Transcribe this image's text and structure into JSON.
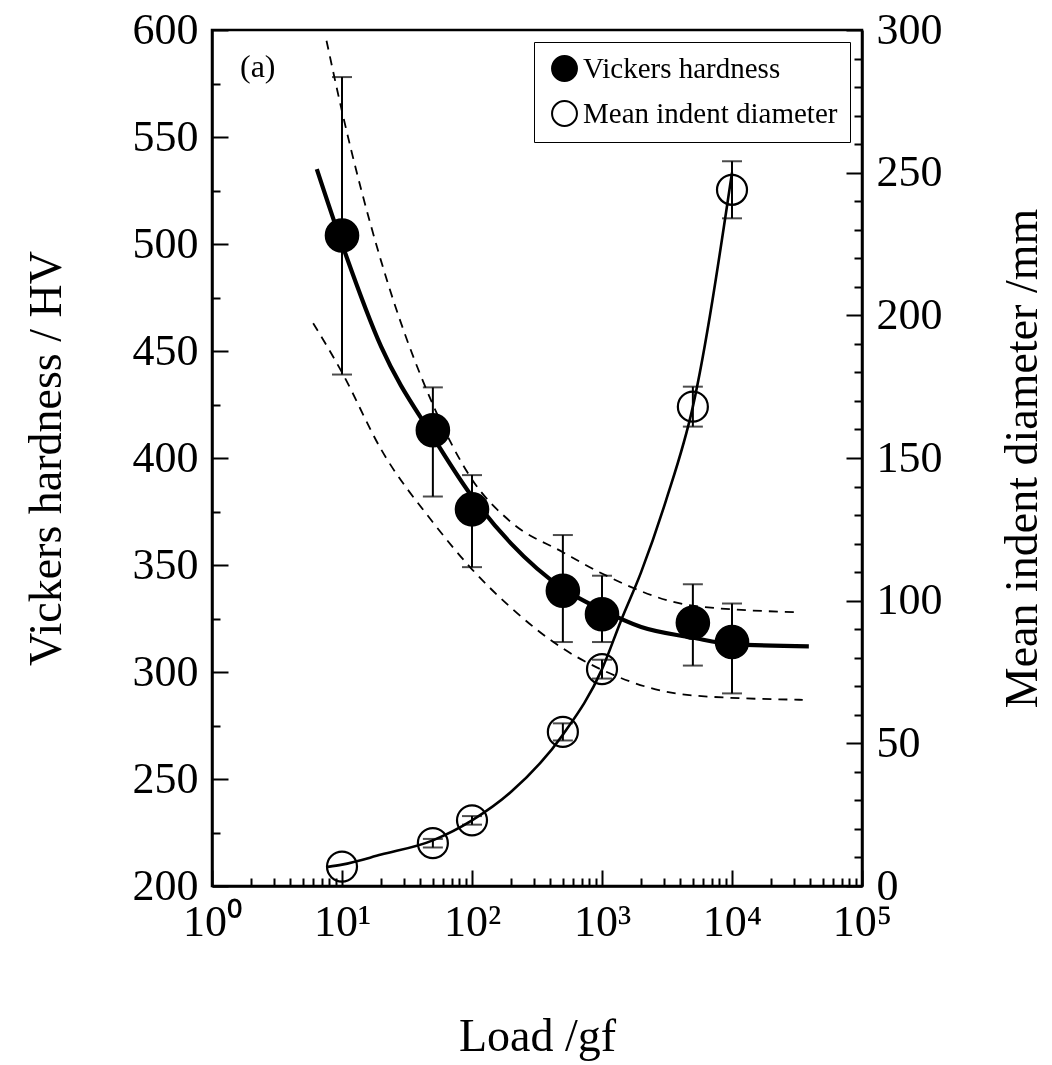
{
  "chart_data": {
    "type": "scatter",
    "xlabel": "Load /gf",
    "ylabel": "Vickers hardness / HV",
    "y2label": "Mean indent diameter /mm",
    "annotations": [
      "(a)"
    ],
    "log": "x",
    "xlim": [
      1,
      100000
    ],
    "xticks": [
      {
        "value": 1,
        "label": "10⁰"
      },
      {
        "value": 2,
        "label": null
      },
      {
        "value": 3,
        "label": null
      },
      {
        "value": 4,
        "label": null
      },
      {
        "value": 5,
        "label": null
      },
      {
        "value": 6,
        "label": null
      },
      {
        "value": 7,
        "label": null
      },
      {
        "value": 8,
        "label": null
      },
      {
        "value": 9,
        "label": null
      },
      {
        "value": 10,
        "label": "10¹"
      },
      {
        "value": 20,
        "label": null
      },
      {
        "value": 30,
        "label": null
      },
      {
        "value": 40,
        "label": null
      },
      {
        "value": 50,
        "label": null
      },
      {
        "value": 60,
        "label": null
      },
      {
        "value": 70,
        "label": null
      },
      {
        "value": 80,
        "label": null
      },
      {
        "value": 90,
        "label": null
      },
      {
        "value": 100,
        "label": "10²"
      },
      {
        "value": 200,
        "label": null
      },
      {
        "value": 300,
        "label": null
      },
      {
        "value": 400,
        "label": null
      },
      {
        "value": 500,
        "label": null
      },
      {
        "value": 600,
        "label": null
      },
      {
        "value": 700,
        "label": null
      },
      {
        "value": 800,
        "label": null
      },
      {
        "value": 900,
        "label": null
      },
      {
        "value": 1000,
        "label": "10³"
      },
      {
        "value": 2000,
        "label": null
      },
      {
        "value": 3000,
        "label": null
      },
      {
        "value": 4000,
        "label": null
      },
      {
        "value": 5000,
        "label": null
      },
      {
        "value": 6000,
        "label": null
      },
      {
        "value": 7000,
        "label": null
      },
      {
        "value": 8000,
        "label": null
      },
      {
        "value": 9000,
        "label": null
      },
      {
        "value": 10000,
        "label": "10⁴"
      },
      {
        "value": 20000,
        "label": null
      },
      {
        "value": 30000,
        "label": null
      },
      {
        "value": 40000,
        "label": null
      },
      {
        "value": 50000,
        "label": null
      },
      {
        "value": 60000,
        "label": null
      },
      {
        "value": 70000,
        "label": null
      },
      {
        "value": 80000,
        "label": null
      },
      {
        "value": 90000,
        "label": null
      },
      {
        "value": 100000,
        "label": "10⁵"
      }
    ],
    "ylim": [
      200,
      600
    ],
    "yticks": [
      200,
      {
        "value": 225,
        "label": null
      },
      250,
      {
        "value": 275,
        "label": null
      },
      300,
      {
        "value": 325,
        "label": null
      },
      350,
      {
        "value": 375,
        "label": null
      },
      400,
      {
        "value": 425,
        "label": null
      },
      450,
      {
        "value": 475,
        "label": null
      },
      500,
      {
        "value": 525,
        "label": null
      },
      550,
      {
        "value": 575,
        "label": null
      },
      600
    ],
    "y2lim": [
      0,
      300
    ],
    "y2ticks": [
      0,
      {
        "value": 10,
        "label": null
      },
      {
        "value": 20,
        "label": null
      },
      {
        "value": 30,
        "label": null
      },
      {
        "value": 40,
        "label": null
      },
      50,
      {
        "value": 60,
        "label": null
      },
      {
        "value": 70,
        "label": null
      },
      {
        "value": 80,
        "label": null
      },
      {
        "value": 90,
        "label": null
      },
      100,
      {
        "value": 110,
        "label": null
      },
      {
        "value": 120,
        "label": null
      },
      {
        "value": 130,
        "label": null
      },
      {
        "value": 140,
        "label": null
      },
      150,
      {
        "value": 160,
        "label": null
      },
      {
        "value": 170,
        "label": null
      },
      {
        "value": 180,
        "label": null
      },
      {
        "value": 190,
        "label": null
      },
      200,
      {
        "value": 210,
        "label": null
      },
      {
        "value": 220,
        "label": null
      },
      {
        "value": 230,
        "label": null
      },
      {
        "value": 240,
        "label": null
      },
      250,
      {
        "value": 260,
        "label": null
      },
      {
        "value": 270,
        "label": null
      },
      {
        "value": 280,
        "label": null
      },
      {
        "value": 290,
        "label": null
      },
      300
    ],
    "legend": "top right",
    "series": [
      {
        "type": "line",
        "color": "#000000",
        "line_style": "solid",
        "x": [
          6.4,
          10,
          20,
          50,
          100,
          200,
          500,
          1000,
          2000,
          5000,
          10000,
          39000
        ],
        "values": [
          535,
          500,
          452,
          410,
          382,
          360,
          339,
          329,
          321,
          316,
          313,
          312
        ]
      },
      {
        "type": "line",
        "color": "#000000",
        "line_style": "dashed",
        "x": [
          7.6,
          10,
          20,
          50,
          100,
          200,
          500,
          1000,
          5000,
          30000
        ],
        "values": [
          595,
          562,
          492,
          425,
          390,
          370,
          356,
          346,
          331,
          328
        ]
      },
      {
        "type": "line",
        "color": "#000000",
        "line_style": "dashed",
        "x": [
          6,
          10,
          20,
          50,
          100,
          200,
          500,
          1000,
          5000,
          35000
        ],
        "values": [
          463,
          440,
          404,
          370,
          348,
          330,
          311,
          301,
          289,
          287
        ]
      },
      {
        "type": "line",
        "color": "#000000",
        "line_style": "solid",
        "axis": "y2",
        "x": [
          7.8,
          10,
          20,
          50,
          100,
          200,
          500,
          1000,
          1400,
          2000,
          3100,
          5000,
          10000
        ],
        "values": [
          6.7,
          7.5,
          11,
          16,
          23,
          33,
          53,
          76,
          93,
          110,
          135,
          168,
          250
        ]
      },
      {
        "name": "Vickers hardness",
        "type": "scatter",
        "marker": "circle",
        "color": "#000000",
        "x": [
          10,
          50,
          100,
          500,
          1000,
          5000,
          10000
        ],
        "values": [
          504,
          413,
          376,
          338,
          327,
          323,
          314
        ],
        "errors": [
          [
            439,
            578
          ],
          [
            382,
            433
          ],
          [
            349,
            392
          ],
          [
            314,
            364
          ],
          [
            314,
            345
          ],
          [
            303,
            341
          ],
          [
            290,
            332
          ]
        ]
      },
      {
        "name": "Mean indent diameter",
        "type": "scatter",
        "marker": "circle",
        "axis": "y2",
        "color": "#000000",
        "x": [
          10,
          50,
          100,
          500,
          1000,
          5000,
          10000
        ],
        "values": [
          6.8,
          15,
          23,
          54,
          76,
          168,
          244
        ],
        "errors": [
          null,
          1.5,
          1.5,
          3,
          3.3,
          7,
          10
        ]
      }
    ]
  }
}
